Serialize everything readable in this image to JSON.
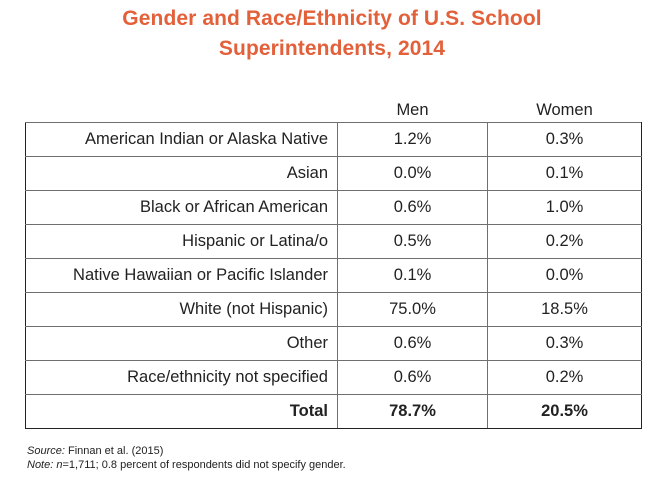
{
  "title": {
    "line1": "Gender and Race/Ethnicity of U.S. School",
    "line2": "Superintendents, 2014"
  },
  "table": {
    "columns": [
      "",
      "Men",
      "Women"
    ],
    "rows": [
      {
        "label": "American Indian or Alaska Native",
        "men": "1.2%",
        "women": "0.3%"
      },
      {
        "label": "Asian",
        "men": "0.0%",
        "women": "0.1%"
      },
      {
        "label": "Black or African American",
        "men": "0.6%",
        "women": "1.0%"
      },
      {
        "label": "Hispanic or Latina/o",
        "men": "0.5%",
        "women": "0.2%"
      },
      {
        "label": "Native Hawaiian or Pacific Islander",
        "men": "0.1%",
        "women": "0.0%"
      },
      {
        "label": "White (not Hispanic)",
        "men": "75.0%",
        "women": "18.5%"
      },
      {
        "label": "Other",
        "men": "0.6%",
        "women": "0.3%"
      },
      {
        "label": "Race/ethnicity not specified",
        "men": "0.6%",
        "women": "0.2%"
      }
    ],
    "total": {
      "label": "Total",
      "men": "78.7%",
      "women": "20.5%"
    }
  },
  "notes": {
    "source_label": "Source:",
    "source_text": " Finnan et al. (2015)",
    "note_label": "Note:",
    "note_n": "n",
    "note_text": "=1,711; 0.8 percent of respondents did not specify gender."
  },
  "colors": {
    "title": "#e2603a",
    "text": "#222222",
    "rule": "#6f6f6f"
  }
}
